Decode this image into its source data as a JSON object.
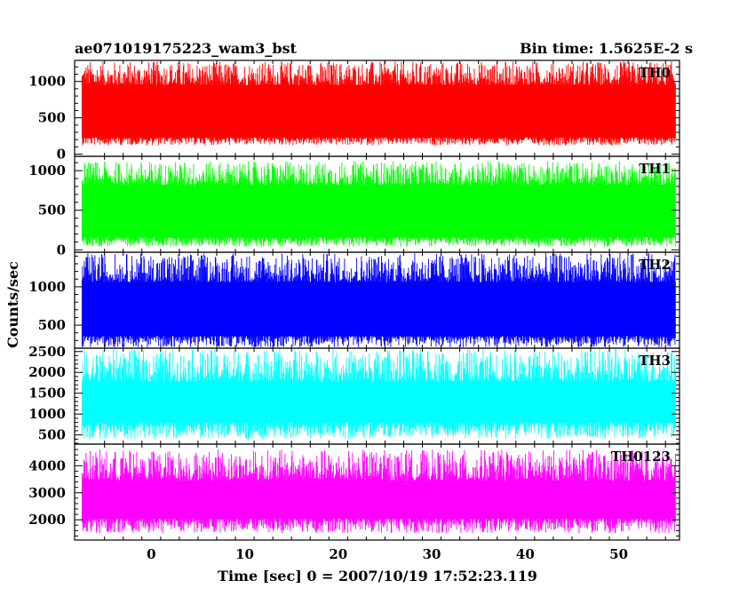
{
  "header": {
    "left_title": "ae071019175223_wam3_bst",
    "right_title": "Bin time: 1.5625E-2 s"
  },
  "chart_data": {
    "type": "line",
    "xlabel": "Time [sec] 0 = 2007/10/19 17:52:23.119",
    "ylabel": "Counts/sec",
    "xlim": [
      -8.2,
      56.5
    ],
    "x_ticks": [
      0,
      10,
      20,
      30,
      40,
      50
    ],
    "x_range_data": [
      -7.4,
      56.1
    ],
    "panels": [
      {
        "name": "TH0",
        "color": "#ff0000",
        "ylim": [
          -30,
          1290
        ],
        "y_ticks": [
          0,
          500,
          1000
        ],
        "band_low": 230,
        "band_high": 950,
        "floor": 120,
        "ceiling": 1280
      },
      {
        "name": "TH1",
        "color": "#00ff00",
        "ylim": [
          -30,
          1180
        ],
        "y_ticks": [
          0,
          500,
          1000
        ],
        "band_low": 160,
        "band_high": 820,
        "floor": 40,
        "ceiling": 1120
      },
      {
        "name": "TH2",
        "color": "#0000ff",
        "ylim": [
          200,
          1450
        ],
        "y_ticks": [
          500,
          1000
        ],
        "band_low": 360,
        "band_high": 1060,
        "floor": 210,
        "ceiling": 1440
      },
      {
        "name": "TH3",
        "color": "#00ffff",
        "ylim": [
          280,
          2580
        ],
        "y_ticks": [
          500,
          1000,
          1500,
          2000,
          2500
        ],
        "band_low": 800,
        "band_high": 1780,
        "floor": 400,
        "ceiling": 2560
      },
      {
        "name": "TH0123",
        "color": "#ff00ff",
        "ylim": [
          1250,
          4800
        ],
        "y_ticks": [
          2000,
          3000,
          4000
        ],
        "band_low": 2050,
        "band_high": 3450,
        "floor": 1500,
        "ceiling": 4600
      }
    ]
  }
}
